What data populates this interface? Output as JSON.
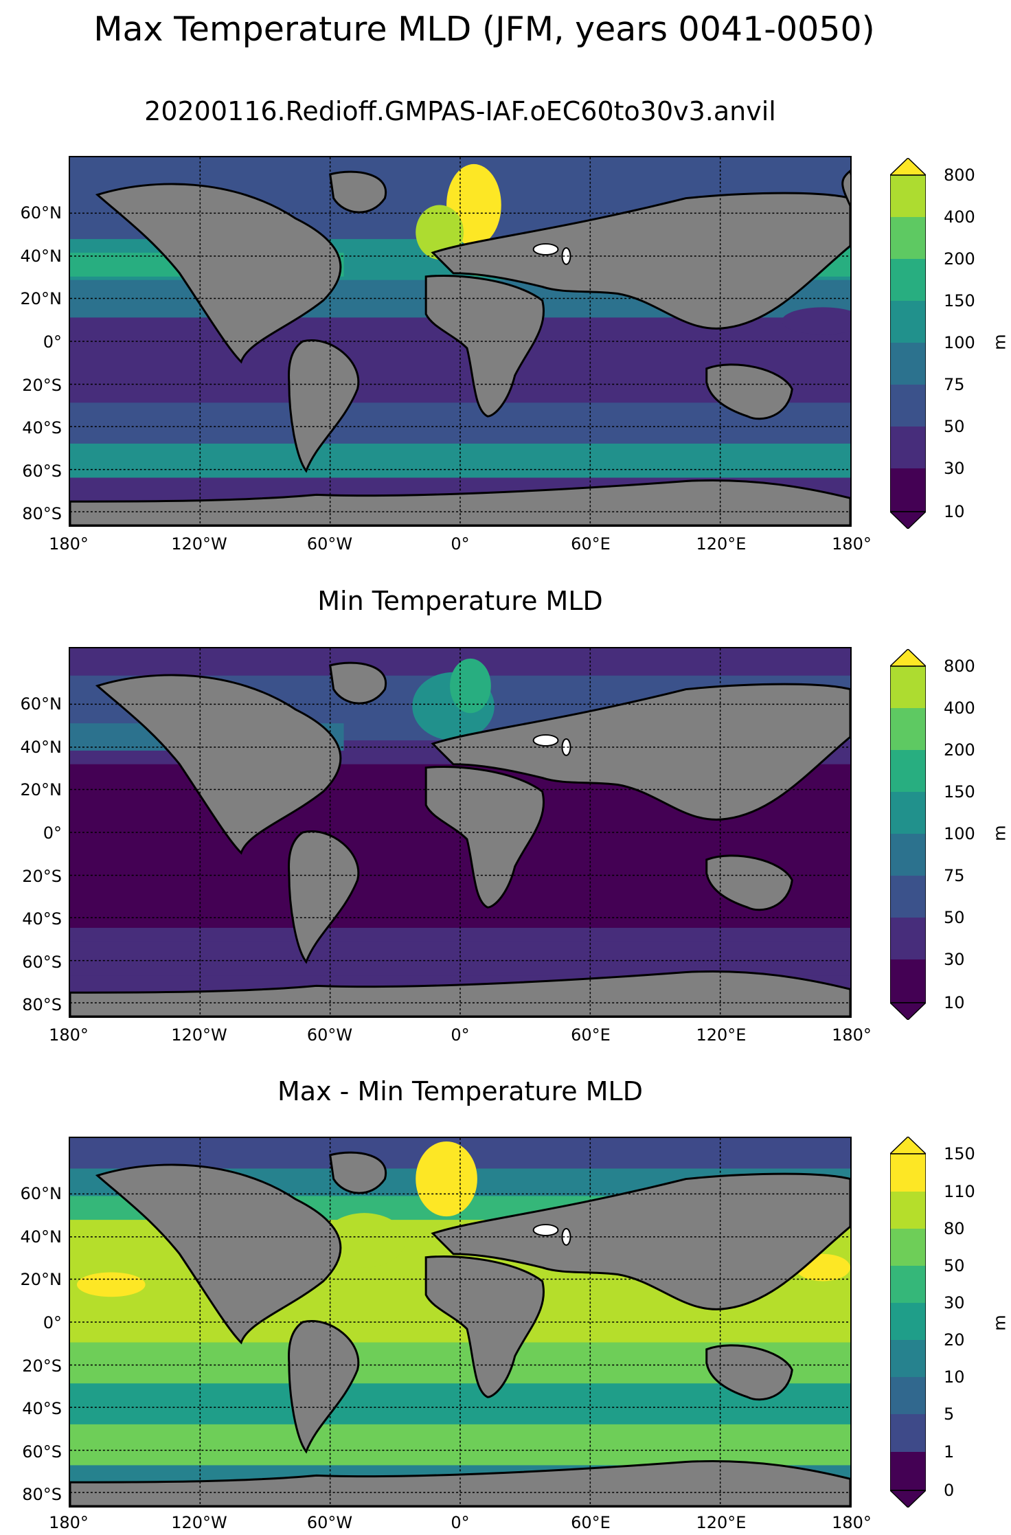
{
  "figure": {
    "suptitle": "Max Temperature MLD (JFM, years 0041-0050)"
  },
  "panels": [
    {
      "title": "20200116.Redioff.GMPAS-IAF.oEC60to30v3.anvil",
      "colorbar_ticks": [
        "10",
        "30",
        "50",
        "75",
        "100",
        "150",
        "200",
        "400",
        "800"
      ],
      "colorbar_unit": "m"
    },
    {
      "title": "Min Temperature MLD",
      "colorbar_ticks": [
        "10",
        "30",
        "50",
        "75",
        "100",
        "150",
        "200",
        "400",
        "800"
      ],
      "colorbar_unit": "m"
    },
    {
      "title": "Max - Min Temperature MLD",
      "colorbar_ticks": [
        "0",
        "1",
        "5",
        "10",
        "20",
        "30",
        "50",
        "80",
        "110",
        "150"
      ],
      "colorbar_unit": "m"
    }
  ],
  "axes": {
    "lat_ticks": [
      "60°N",
      "40°N",
      "20°N",
      "0°",
      "20°S",
      "40°S",
      "60°S",
      "80°S"
    ],
    "lon_ticks": [
      "180°",
      "120°W",
      "60°W",
      "0°",
      "60°E",
      "120°E",
      "180°"
    ]
  },
  "colors": {
    "land": "#808080",
    "viridis_9": [
      "#440154",
      "#472d7b",
      "#3b528b",
      "#2c728e",
      "#21918c",
      "#28ae80",
      "#5ec962",
      "#addc30",
      "#fde725"
    ],
    "viridis_10": [
      "#440154",
      "#482878",
      "#3e4a89",
      "#31688e",
      "#26828e",
      "#1f9e89",
      "#35b779",
      "#6ece58",
      "#b5de2b",
      "#fde725"
    ]
  }
}
